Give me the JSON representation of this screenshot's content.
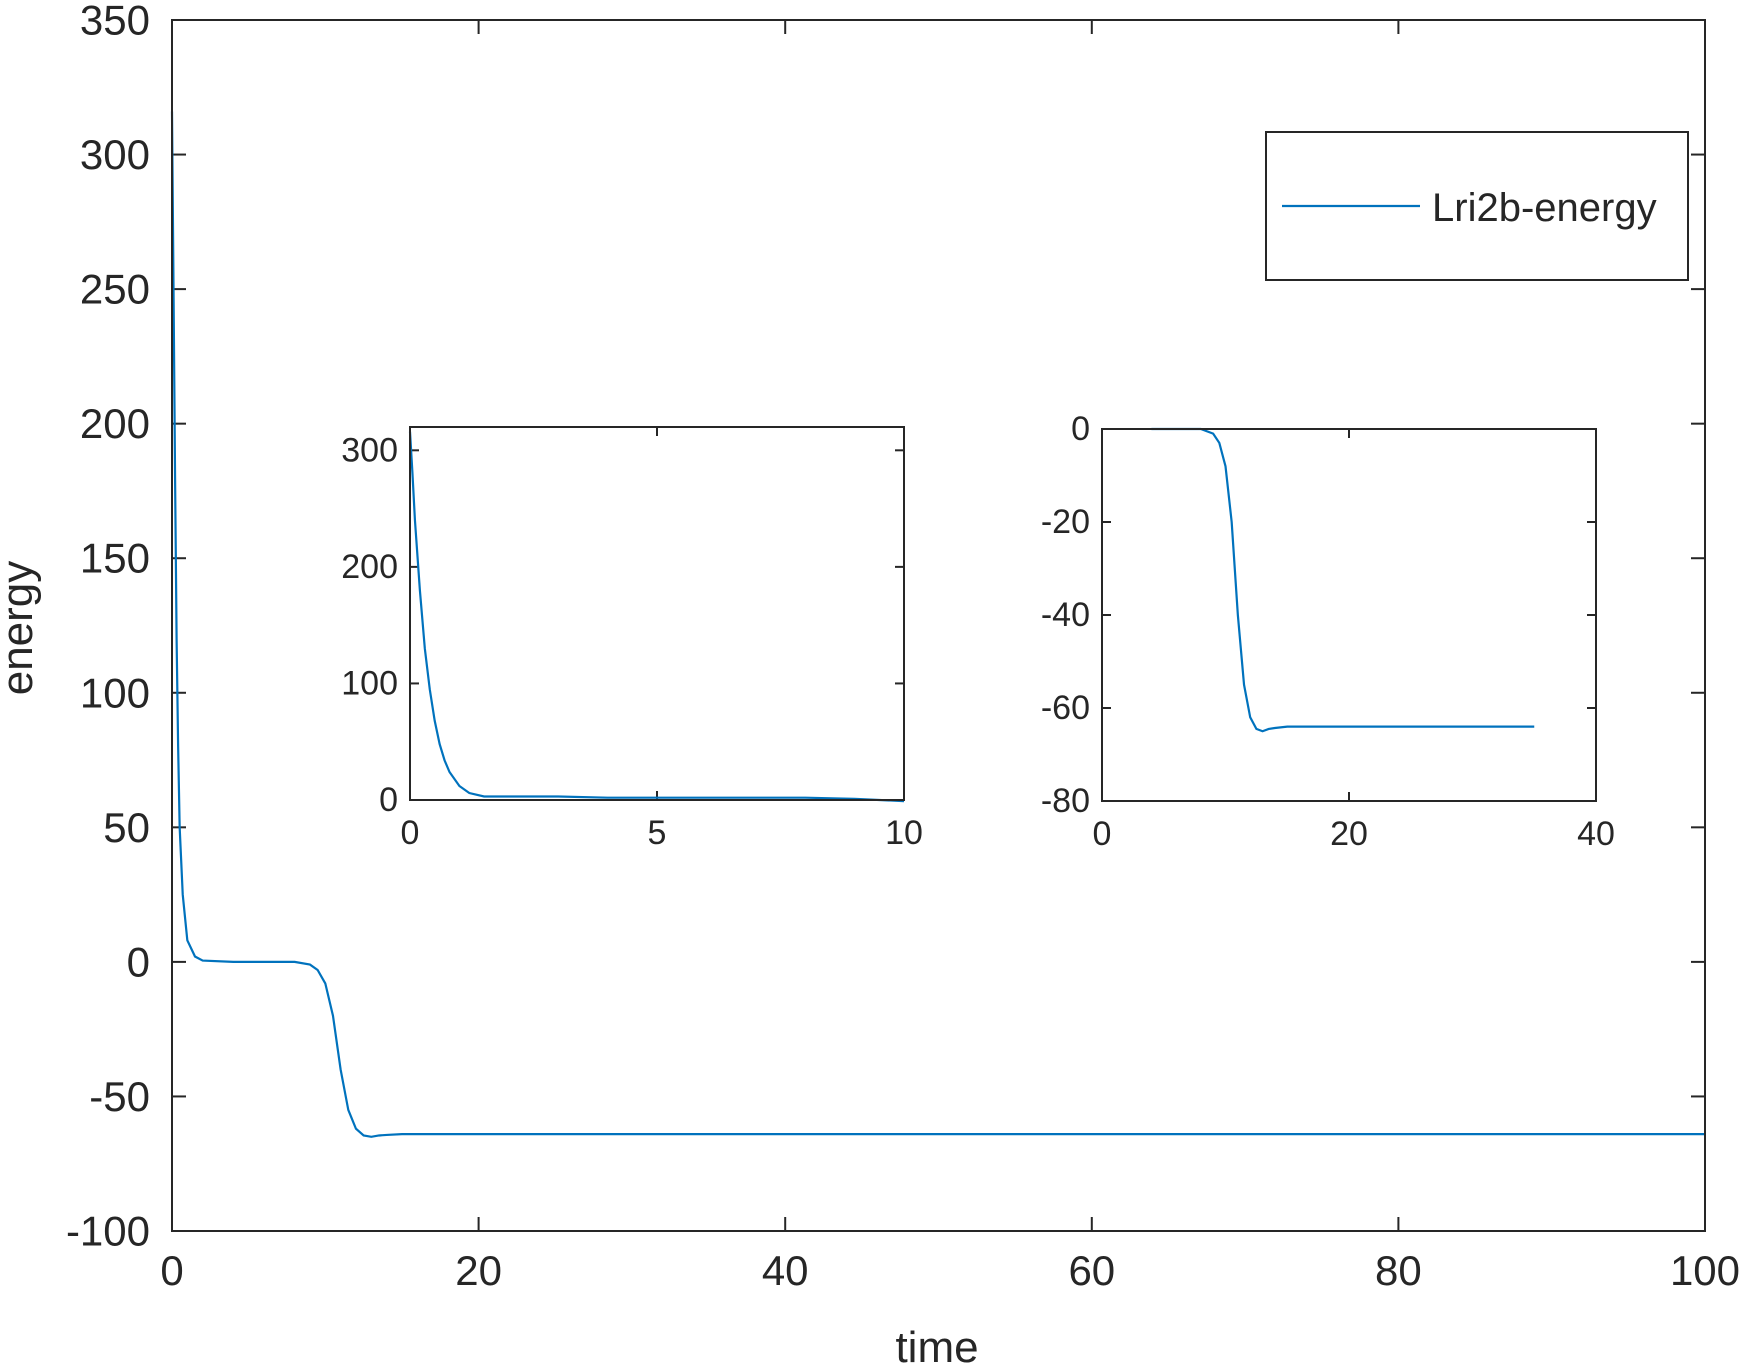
{
  "colors": {
    "series": "#0072BD",
    "axes": "#262626",
    "background": "#ffffff"
  },
  "chart_data": [
    {
      "type": "line",
      "role": "main",
      "xlabel": "time",
      "ylabel": "energy",
      "xlim": [
        0,
        100
      ],
      "ylim": [
        -100,
        350
      ],
      "xticks": [
        "0",
        "20",
        "40",
        "60",
        "80",
        "100"
      ],
      "yticks": [
        "-100",
        "-50",
        "0",
        "50",
        "100",
        "150",
        "200",
        "250",
        "300",
        "350"
      ],
      "grid": false,
      "legend": {
        "placement": "top-right",
        "entries": [
          "Lri2b-energy"
        ]
      },
      "series": [
        {
          "name": "Lri2b-energy",
          "x": [
            0,
            0.1,
            0.2,
            0.3,
            0.4,
            0.5,
            0.7,
            1.0,
            1.5,
            2,
            4,
            6,
            8,
            9,
            9.5,
            10,
            10.5,
            11,
            11.5,
            12,
            12.5,
            13,
            13.5,
            14,
            15,
            20,
            40,
            60,
            80,
            100
          ],
          "y": [
            316,
            250,
            180,
            120,
            80,
            50,
            25,
            8,
            2,
            0.5,
            0,
            0,
            0,
            -1,
            -3,
            -8,
            -20,
            -40,
            -55,
            -62,
            -64.5,
            -65,
            -64.5,
            -64.3,
            -64,
            -64,
            -64,
            -64,
            -64,
            -64
          ]
        }
      ]
    },
    {
      "type": "line",
      "role": "inset-left",
      "xlabel": "",
      "ylabel": "",
      "xlim": [
        0,
        10
      ],
      "ylim": [
        0,
        320
      ],
      "xticks": [
        "0",
        "5",
        "10"
      ],
      "yticks": [
        "0",
        "100",
        "200",
        "300"
      ],
      "series": [
        {
          "x": [
            0,
            0.05,
            0.1,
            0.2,
            0.3,
            0.4,
            0.5,
            0.6,
            0.7,
            0.8,
            1.0,
            1.2,
            1.5,
            2,
            3,
            4,
            5,
            6,
            7,
            8,
            9,
            9.5,
            10
          ],
          "y": [
            316,
            280,
            240,
            180,
            130,
            95,
            68,
            48,
            34,
            24,
            12,
            6,
            3,
            3,
            3,
            2,
            2,
            2,
            2,
            2,
            1,
            0,
            -1
          ]
        }
      ]
    },
    {
      "type": "line",
      "role": "inset-right",
      "xlabel": "",
      "ylabel": "",
      "xlim": [
        0,
        40
      ],
      "ylim": [
        -80,
        0
      ],
      "xticks": [
        "0",
        "20",
        "40"
      ],
      "yticks": [
        "-80",
        "-60",
        "-40",
        "-20",
        "0"
      ],
      "series": [
        {
          "x": [
            4,
            6,
            8,
            9,
            9.5,
            10,
            10.5,
            11,
            11.5,
            12,
            12.5,
            13,
            13.5,
            14,
            15,
            20,
            25,
            30,
            35
          ],
          "y": [
            0,
            0,
            0,
            -1,
            -3,
            -8,
            -20,
            -40,
            -55,
            -62,
            -64.5,
            -65,
            -64.5,
            -64.3,
            -64,
            -64,
            -64,
            -64,
            -64
          ]
        }
      ]
    }
  ]
}
